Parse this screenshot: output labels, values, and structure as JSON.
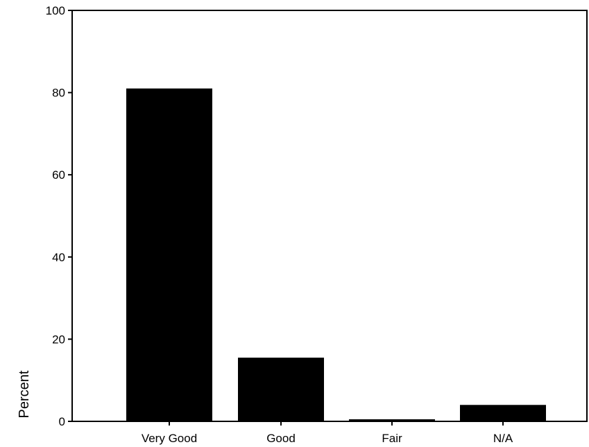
{
  "chart_data": {
    "type": "bar",
    "categories": [
      "Very Good",
      "Good",
      "Fair",
      "N/A"
    ],
    "values": [
      81,
      15.5,
      0.5,
      4
    ],
    "ylabel": "Percent",
    "ylim": [
      0,
      100
    ],
    "yticks": [
      0,
      20,
      40,
      60,
      80,
      100
    ],
    "grid": false,
    "bar_color": "#000000",
    "legend": "none"
  }
}
